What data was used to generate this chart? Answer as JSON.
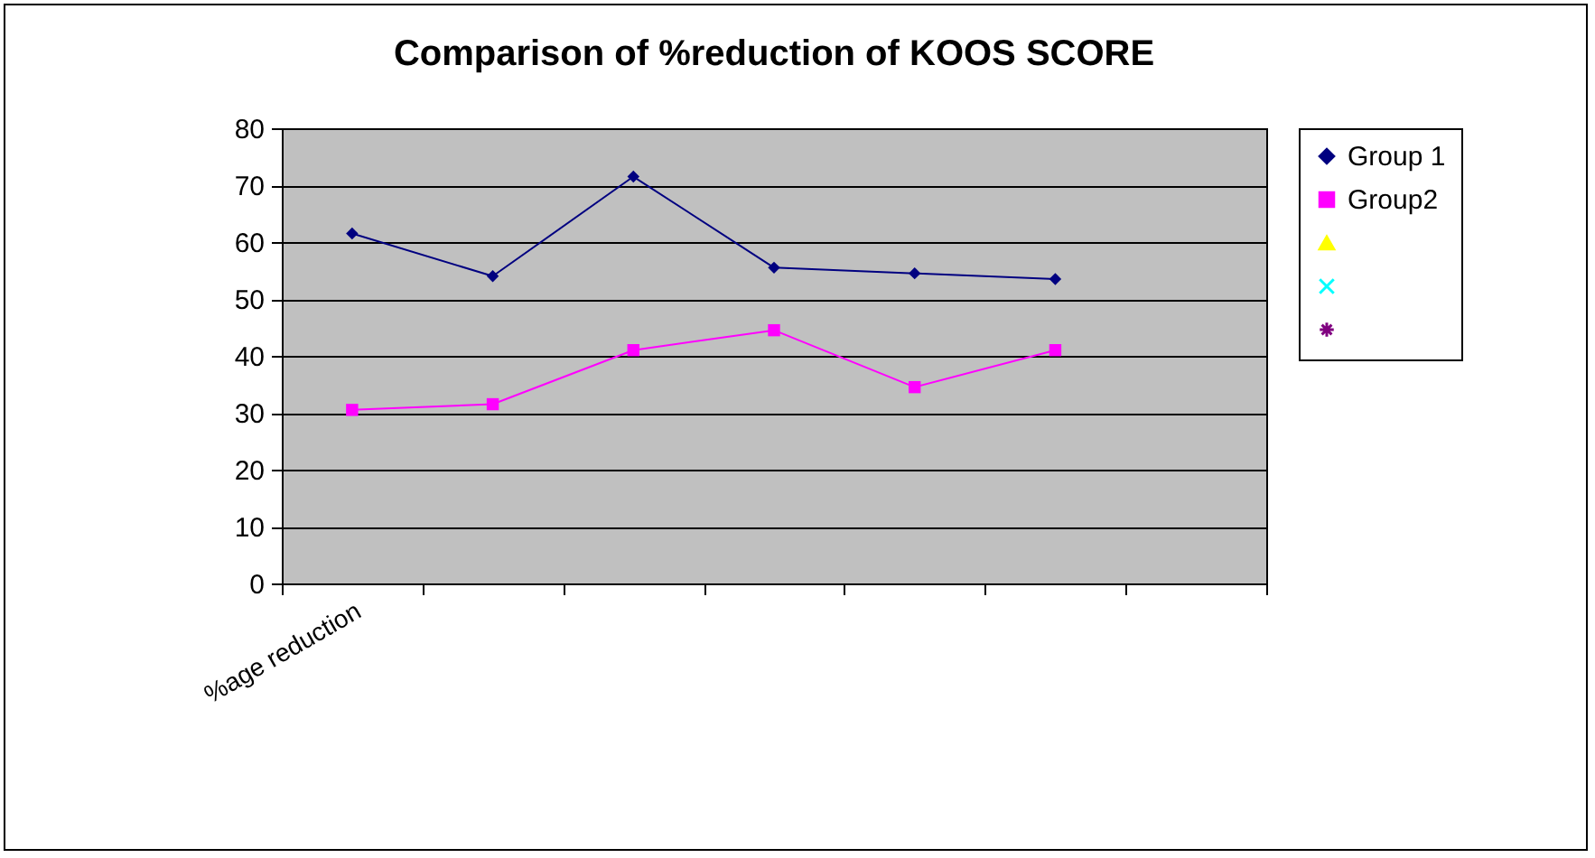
{
  "chart_data": {
    "type": "line",
    "title": "Comparison of %reduction of KOOS SCORE",
    "categories": [
      "%age reduction",
      null,
      null,
      null,
      null,
      null,
      null
    ],
    "series": [
      {
        "name": "Group 1",
        "color": "#000080",
        "marker": "diamond",
        "values": [
          61.5,
          54,
          71.5,
          55.5,
          54.5,
          53.5,
          null
        ]
      },
      {
        "name": "Group2",
        "color": "#ff00ff",
        "marker": "square",
        "values": [
          30.5,
          31.5,
          41,
          44.5,
          34.5,
          41,
          null
        ]
      },
      {
        "color": "#ffff00",
        "marker": "triangle",
        "values": [
          null,
          null,
          null,
          null,
          null,
          null,
          null
        ]
      },
      {
        "color": "#00ffff",
        "marker": "cross",
        "values": [
          null,
          null,
          null,
          null,
          null,
          null,
          null
        ]
      },
      {
        "color": "#800080",
        "marker": "star",
        "values": [
          null,
          null,
          null,
          null,
          null,
          null,
          null
        ]
      }
    ],
    "ylim": [
      0,
      80
    ],
    "yticks": [
      0,
      10,
      20,
      30,
      40,
      50,
      60,
      70,
      80
    ],
    "grid": "y",
    "legend": "right"
  }
}
